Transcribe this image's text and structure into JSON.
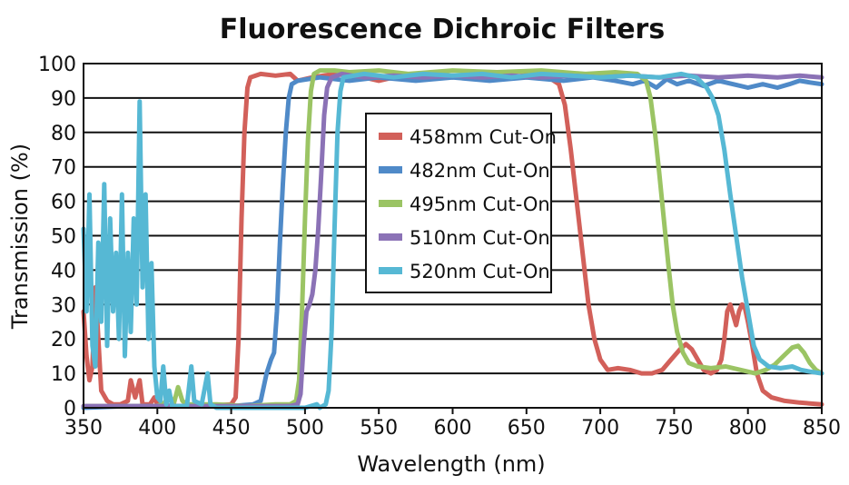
{
  "chart_data": {
    "type": "line",
    "title": "Fluorescence Dichroic Filters",
    "xlabel": "Wavelength (nm)",
    "ylabel": "Transmission (%)",
    "xlim": [
      350,
      850
    ],
    "ylim": [
      0,
      100
    ],
    "xticks": [
      350,
      400,
      450,
      500,
      550,
      600,
      650,
      700,
      750,
      800,
      850
    ],
    "yticks": [
      0,
      10,
      20,
      30,
      40,
      50,
      60,
      70,
      80,
      90,
      100
    ],
    "grid": "horizontal",
    "legend_position": "center",
    "series": [
      {
        "name": "458mm Cut-On",
        "color": "#d2605a",
        "points": [
          [
            350,
            28
          ],
          [
            352,
            15
          ],
          [
            354,
            8
          ],
          [
            356,
            12
          ],
          [
            358,
            35
          ],
          [
            360,
            20
          ],
          [
            362,
            5
          ],
          [
            366,
            2
          ],
          [
            370,
            1
          ],
          [
            375,
            1
          ],
          [
            380,
            2
          ],
          [
            382,
            8
          ],
          [
            385,
            3
          ],
          [
            388,
            8
          ],
          [
            390,
            1
          ],
          [
            395,
            1
          ],
          [
            398,
            3
          ],
          [
            400,
            1
          ],
          [
            410,
            0.5
          ],
          [
            430,
            0.5
          ],
          [
            450,
            1
          ],
          [
            453,
            3
          ],
          [
            455,
            20
          ],
          [
            457,
            55
          ],
          [
            459,
            80
          ],
          [
            461,
            93
          ],
          [
            463,
            96
          ],
          [
            470,
            97
          ],
          [
            480,
            96.5
          ],
          [
            490,
            97
          ],
          [
            495,
            95
          ],
          [
            505,
            96
          ],
          [
            520,
            97
          ],
          [
            540,
            96
          ],
          [
            550,
            95
          ],
          [
            560,
            96
          ],
          [
            575,
            97
          ],
          [
            600,
            96
          ],
          [
            620,
            97
          ],
          [
            640,
            96
          ],
          [
            655,
            97
          ],
          [
            665,
            96
          ],
          [
            672,
            94
          ],
          [
            676,
            88
          ],
          [
            680,
            75
          ],
          [
            684,
            60
          ],
          [
            688,
            45
          ],
          [
            692,
            30
          ],
          [
            696,
            20
          ],
          [
            700,
            14
          ],
          [
            705,
            11
          ],
          [
            712,
            11.5
          ],
          [
            720,
            11
          ],
          [
            728,
            10
          ],
          [
            735,
            10
          ],
          [
            742,
            11
          ],
          [
            748,
            14
          ],
          [
            754,
            17
          ],
          [
            758,
            18.5
          ],
          [
            762,
            17
          ],
          [
            766,
            14
          ],
          [
            770,
            11
          ],
          [
            775,
            10
          ],
          [
            779,
            11
          ],
          [
            782,
            14
          ],
          [
            784,
            20
          ],
          [
            786,
            28
          ],
          [
            788,
            30
          ],
          [
            790,
            27
          ],
          [
            792,
            24
          ],
          [
            794,
            28
          ],
          [
            796,
            30
          ],
          [
            798,
            29
          ],
          [
            800,
            25
          ],
          [
            803,
            18
          ],
          [
            806,
            10
          ],
          [
            810,
            5
          ],
          [
            816,
            3
          ],
          [
            825,
            2
          ],
          [
            835,
            1.5
          ],
          [
            850,
            1
          ]
        ]
      },
      {
        "name": "482nm Cut-On",
        "color": "#4f8ac8",
        "points": [
          [
            350,
            0
          ],
          [
            380,
            0.5
          ],
          [
            420,
            0.5
          ],
          [
            450,
            0.5
          ],
          [
            465,
            1
          ],
          [
            470,
            2
          ],
          [
            474,
            10
          ],
          [
            477,
            14
          ],
          [
            479,
            16
          ],
          [
            481,
            28
          ],
          [
            483,
            48
          ],
          [
            485,
            65
          ],
          [
            487,
            80
          ],
          [
            489,
            90
          ],
          [
            491,
            94
          ],
          [
            495,
            95
          ],
          [
            510,
            96
          ],
          [
            530,
            95
          ],
          [
            550,
            96
          ],
          [
            575,
            95
          ],
          [
            600,
            96
          ],
          [
            625,
            95
          ],
          [
            650,
            96
          ],
          [
            675,
            95
          ],
          [
            695,
            96
          ],
          [
            710,
            95
          ],
          [
            722,
            94
          ],
          [
            730,
            95
          ],
          [
            738,
            93
          ],
          [
            745,
            95.5
          ],
          [
            752,
            94
          ],
          [
            760,
            95
          ],
          [
            770,
            93.5
          ],
          [
            780,
            95
          ],
          [
            790,
            94
          ],
          [
            800,
            93
          ],
          [
            810,
            94
          ],
          [
            820,
            93
          ],
          [
            828,
            94
          ],
          [
            835,
            95
          ],
          [
            842,
            94.5
          ],
          [
            850,
            94
          ]
        ]
      },
      {
        "name": "495nm Cut-On",
        "color": "#9bc464",
        "points": [
          [
            350,
            0.5
          ],
          [
            380,
            0.5
          ],
          [
            400,
            0.5
          ],
          [
            405,
            1.5
          ],
          [
            408,
            4
          ],
          [
            411,
            1
          ],
          [
            414,
            6
          ],
          [
            417,
            2
          ],
          [
            420,
            1
          ],
          [
            440,
            1
          ],
          [
            460,
            0.5
          ],
          [
            480,
            1
          ],
          [
            490,
            1
          ],
          [
            494,
            2
          ],
          [
            496,
            8
          ],
          [
            498,
            28
          ],
          [
            500,
            55
          ],
          [
            502,
            78
          ],
          [
            504,
            92
          ],
          [
            506,
            97
          ],
          [
            510,
            98
          ],
          [
            520,
            98
          ],
          [
            530,
            97.5
          ],
          [
            550,
            98
          ],
          [
            570,
            97
          ],
          [
            600,
            98
          ],
          [
            630,
            97.5
          ],
          [
            660,
            98
          ],
          [
            690,
            97
          ],
          [
            710,
            97.5
          ],
          [
            725,
            97
          ],
          [
            731,
            95
          ],
          [
            734,
            90
          ],
          [
            737,
            80
          ],
          [
            740,
            68
          ],
          [
            743,
            55
          ],
          [
            746,
            42
          ],
          [
            749,
            30
          ],
          [
            752,
            22
          ],
          [
            756,
            16
          ],
          [
            760,
            13
          ],
          [
            766,
            12
          ],
          [
            775,
            11.5
          ],
          [
            785,
            12
          ],
          [
            795,
            11
          ],
          [
            805,
            10
          ],
          [
            812,
            11
          ],
          [
            818,
            12.5
          ],
          [
            824,
            15
          ],
          [
            830,
            17.5
          ],
          [
            834,
            18
          ],
          [
            838,
            16
          ],
          [
            842,
            13
          ],
          [
            846,
            11
          ],
          [
            850,
            10
          ]
        ]
      },
      {
        "name": "510nm Cut-On",
        "color": "#8b72b6",
        "points": [
          [
            350,
            0.5
          ],
          [
            380,
            0.5
          ],
          [
            420,
            0.5
          ],
          [
            460,
            0.5
          ],
          [
            490,
            0.5
          ],
          [
            495,
            1
          ],
          [
            497,
            4
          ],
          [
            499,
            18
          ],
          [
            501,
            28
          ],
          [
            503,
            30
          ],
          [
            505,
            33
          ],
          [
            507,
            40
          ],
          [
            509,
            52
          ],
          [
            511,
            68
          ],
          [
            513,
            85
          ],
          [
            515,
            93
          ],
          [
            518,
            96
          ],
          [
            525,
            97
          ],
          [
            540,
            96
          ],
          [
            560,
            96.5
          ],
          [
            580,
            96
          ],
          [
            600,
            96.5
          ],
          [
            620,
            96
          ],
          [
            640,
            96.5
          ],
          [
            660,
            96
          ],
          [
            680,
            96.5
          ],
          [
            700,
            96
          ],
          [
            720,
            96.5
          ],
          [
            740,
            96
          ],
          [
            760,
            96.5
          ],
          [
            780,
            96
          ],
          [
            800,
            96.5
          ],
          [
            820,
            96
          ],
          [
            835,
            96.5
          ],
          [
            850,
            96
          ]
        ]
      },
      {
        "name": "520nm Cut-On",
        "color": "#56b8d4",
        "points": [
          [
            350,
            52
          ],
          [
            352,
            28
          ],
          [
            354,
            62
          ],
          [
            356,
            18
          ],
          [
            358,
            12
          ],
          [
            360,
            48
          ],
          [
            362,
            25
          ],
          [
            364,
            65
          ],
          [
            366,
            18
          ],
          [
            368,
            55
          ],
          [
            370,
            28
          ],
          [
            372,
            45
          ],
          [
            374,
            20
          ],
          [
            376,
            62
          ],
          [
            378,
            15
          ],
          [
            380,
            45
          ],
          [
            382,
            22
          ],
          [
            384,
            55
          ],
          [
            386,
            30
          ],
          [
            388,
            89
          ],
          [
            390,
            35
          ],
          [
            392,
            62
          ],
          [
            394,
            20
          ],
          [
            396,
            42
          ],
          [
            398,
            12
          ],
          [
            400,
            3
          ],
          [
            402,
            2
          ],
          [
            404,
            12
          ],
          [
            406,
            1
          ],
          [
            408,
            5
          ],
          [
            410,
            0.5
          ],
          [
            420,
            0.5
          ],
          [
            423,
            12
          ],
          [
            425,
            2
          ],
          [
            430,
            1
          ],
          [
            434,
            10
          ],
          [
            436,
            1
          ],
          [
            440,
            0
          ],
          [
            460,
            0
          ],
          [
            480,
            0
          ],
          [
            500,
            0
          ],
          [
            508,
            1
          ],
          [
            510,
            0
          ],
          [
            514,
            1
          ],
          [
            516,
            5
          ],
          [
            518,
            22
          ],
          [
            520,
            52
          ],
          [
            522,
            80
          ],
          [
            524,
            92
          ],
          [
            526,
            96
          ],
          [
            540,
            97
          ],
          [
            560,
            96
          ],
          [
            580,
            97
          ],
          [
            600,
            96.5
          ],
          [
            620,
            97
          ],
          [
            640,
            96
          ],
          [
            660,
            97
          ],
          [
            680,
            96.5
          ],
          [
            700,
            96
          ],
          [
            720,
            96.5
          ],
          [
            740,
            96
          ],
          [
            755,
            97
          ],
          [
            765,
            96
          ],
          [
            772,
            93
          ],
          [
            776,
            90
          ],
          [
            780,
            85
          ],
          [
            784,
            75
          ],
          [
            788,
            62
          ],
          [
            792,
            50
          ],
          [
            796,
            38
          ],
          [
            800,
            28
          ],
          [
            804,
            18
          ],
          [
            808,
            14
          ],
          [
            814,
            12
          ],
          [
            822,
            11.5
          ],
          [
            830,
            12
          ],
          [
            836,
            11
          ],
          [
            842,
            10.5
          ],
          [
            850,
            10
          ]
        ]
      }
    ]
  }
}
